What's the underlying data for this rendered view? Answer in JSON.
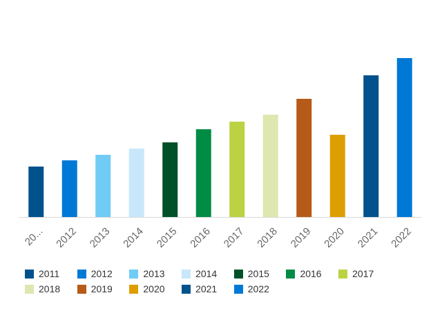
{
  "chart_data": {
    "type": "bar",
    "categories": [
      "2011",
      "2012",
      "2013",
      "2014",
      "2015",
      "2016",
      "2017",
      "2018",
      "2019",
      "2020",
      "2021",
      "2022"
    ],
    "tick_labels": [
      "20...",
      "2012",
      "2013",
      "2014",
      "2015",
      "2016",
      "2017",
      "2018",
      "2019",
      "2020",
      "2021",
      "2022"
    ],
    "values": [
      73,
      82,
      90,
      99,
      108,
      127,
      138,
      148,
      171,
      119,
      205,
      230
    ],
    "colors": [
      "#00518c",
      "#0079d6",
      "#70ccf5",
      "#c9e7fb",
      "#005128",
      "#008c45",
      "#bcd243",
      "#dde7af",
      "#b55b17",
      "#dd9e00",
      "#00518c",
      "#0079d6"
    ],
    "ylim": [
      0,
      250
    ],
    "grid": false,
    "legend": "bottom",
    "title": "",
    "xlabel": "",
    "ylabel": ""
  }
}
